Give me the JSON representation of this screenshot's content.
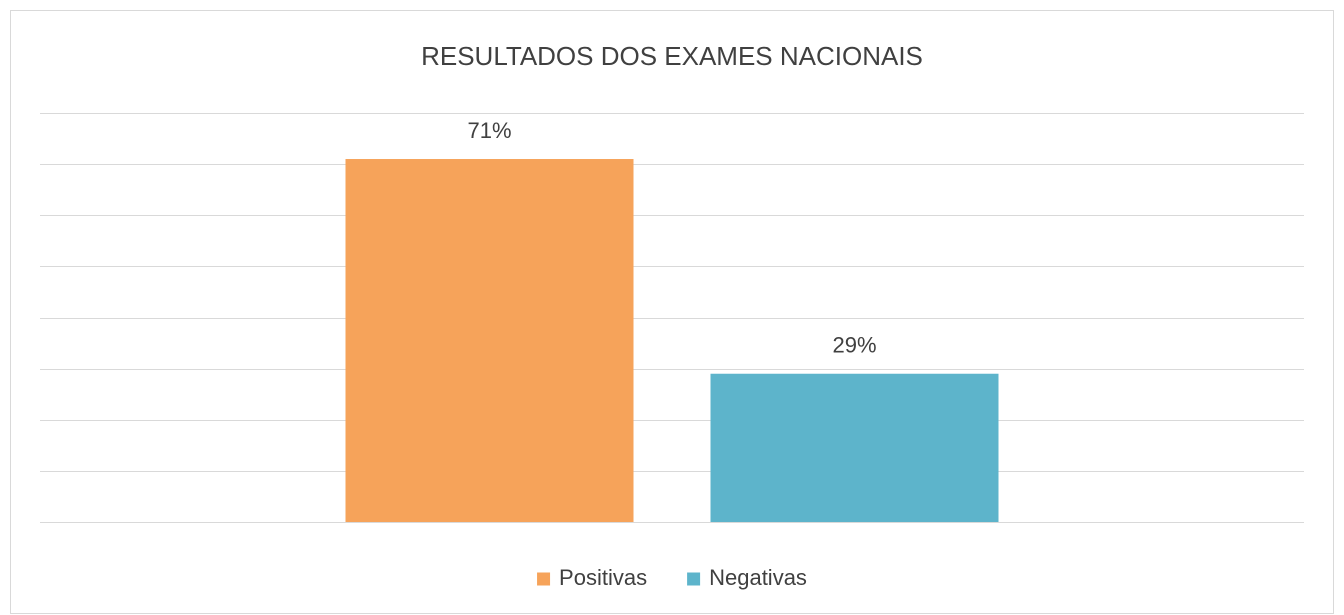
{
  "chart_data": {
    "type": "bar",
    "title": "RESULTADOS DOS EXAMES NACIONAIS",
    "categories": [
      null
    ],
    "series": [
      {
        "name": "Positivas",
        "color": "#f6a35a",
        "values": [
          71
        ],
        "value_labels": [
          "71%"
        ]
      },
      {
        "name": "Negativas",
        "color": "#5db4cb",
        "values": [
          29
        ],
        "value_labels": [
          "29%"
        ]
      }
    ],
    "ylim": [
      0,
      80
    ],
    "yticks": [
      0,
      10,
      20,
      30,
      40,
      50,
      60,
      70,
      80
    ],
    "grid": true,
    "legend": "bottom"
  }
}
